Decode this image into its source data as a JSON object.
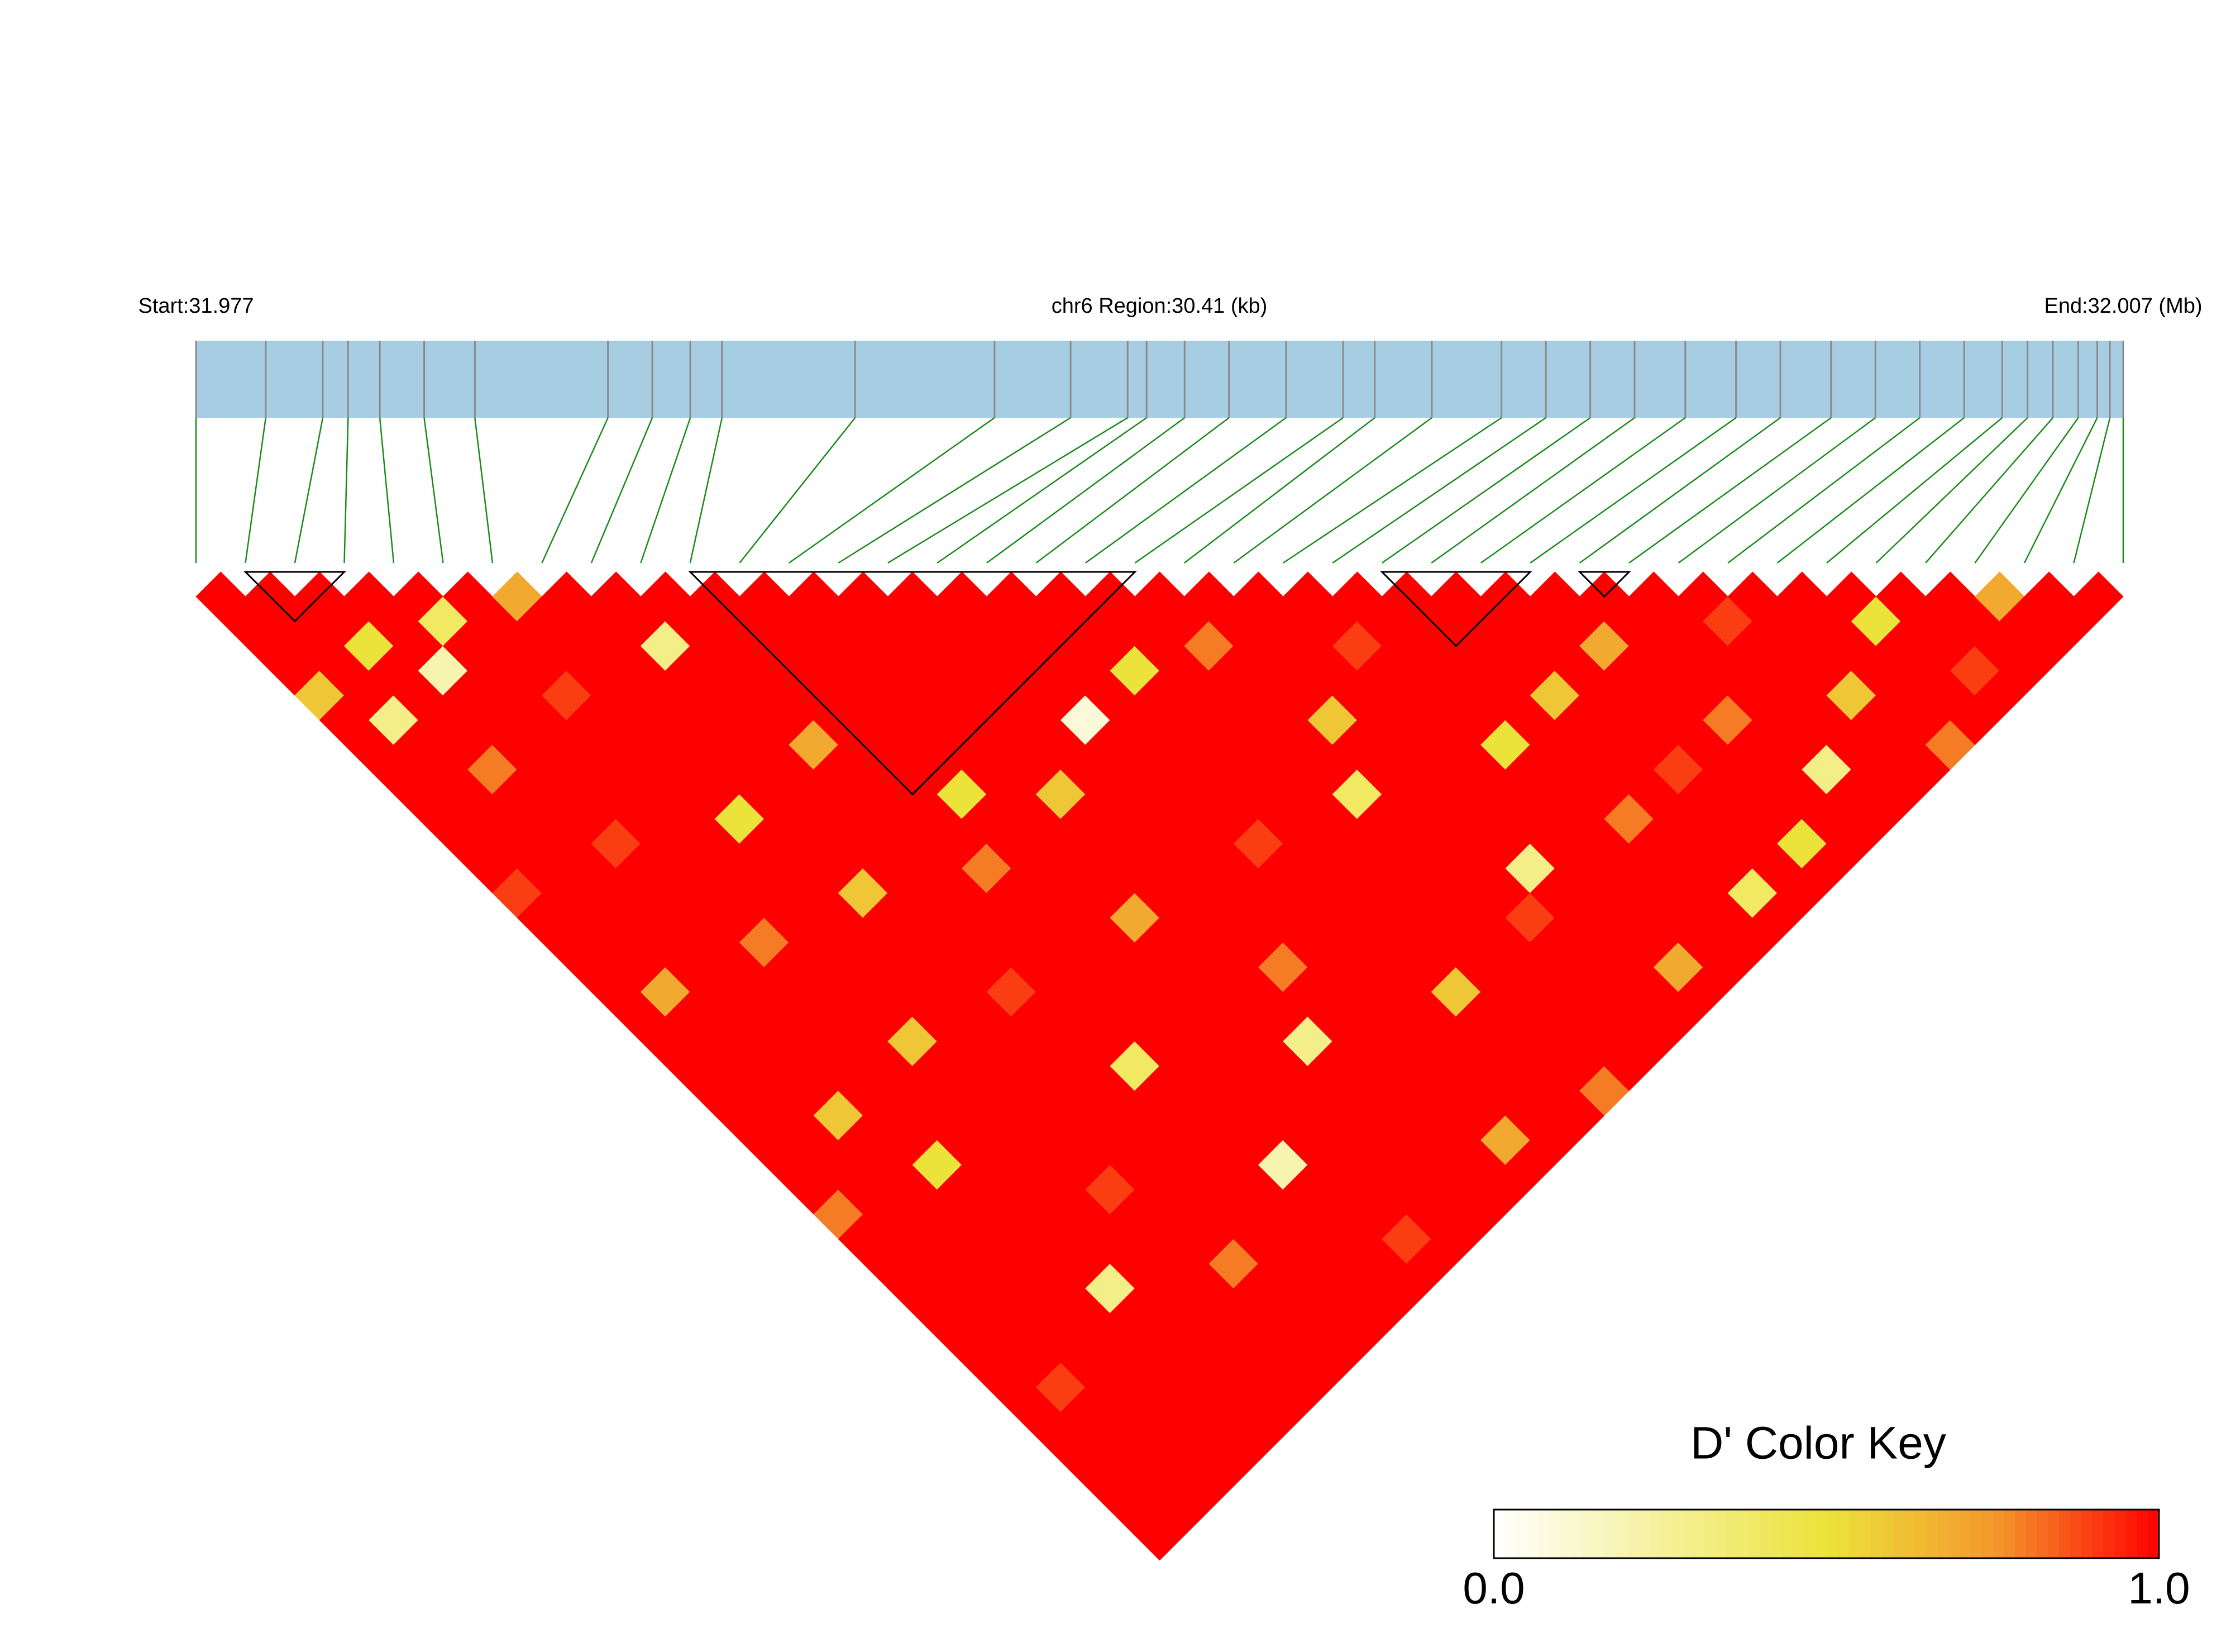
{
  "chart_data": {
    "type": "ld-heatmap",
    "start_label": "Start:31.977",
    "region_label": "chr6 Region:30.41 (kb)",
    "end_label": "End:32.007 (Mb)",
    "xlim": [
      0,
      30.41
    ],
    "positions": [
      0,
      1.1,
      2.0,
      2.4,
      2.9,
      3.6,
      4.4,
      6.5,
      7.2,
      7.8,
      8.3,
      10.4,
      12.6,
      13.8,
      14.7,
      15.0,
      15.6,
      16.3,
      17.2,
      18.1,
      18.6,
      19.5,
      20.6,
      21.3,
      22.0,
      22.7,
      23.5,
      24.3,
      25.0,
      25.8,
      26.5,
      27.2,
      27.9,
      28.5,
      28.9,
      29.3,
      29.7,
      30.0,
      30.2,
      30.41
    ],
    "dprime": [
      [
        1,
        1,
        1,
        1,
        0.6,
        1,
        1,
        1,
        1,
        1,
        1,
        1,
        0.9,
        1,
        1,
        1,
        1,
        1,
        1,
        1,
        1,
        1,
        1,
        1,
        1,
        0.8,
        1,
        1,
        1,
        1,
        1,
        1,
        1,
        1,
        1,
        1,
        1,
        1,
        1
      ],
      [
        1,
        1,
        1,
        1,
        1,
        0.3,
        1,
        1,
        1,
        1,
        1,
        1,
        1,
        1,
        1,
        1,
        0.7,
        1,
        1,
        1,
        1,
        1,
        1,
        1,
        1,
        1,
        1,
        1,
        1,
        1,
        1,
        1,
        0.9,
        1,
        1,
        1,
        1,
        1
      ],
      [
        1,
        1,
        0.5,
        1,
        1,
        1,
        1,
        0.8,
        1,
        1,
        1,
        1,
        1,
        1,
        1,
        1,
        1,
        1,
        1,
        1,
        1,
        0.6,
        1,
        1,
        1,
        1,
        1,
        1,
        1,
        1,
        1,
        1,
        1,
        1,
        1,
        1,
        1
      ],
      [
        1,
        1,
        1,
        0.2,
        1,
        1,
        1,
        1,
        1,
        1,
        0.9,
        1,
        1,
        1,
        1,
        1,
        1,
        1,
        1,
        1,
        1,
        1,
        1,
        0.5,
        1,
        1,
        1,
        1,
        1,
        1,
        1,
        1,
        1,
        1,
        1,
        1
      ],
      [
        1,
        0.4,
        1,
        1,
        1,
        1,
        1,
        1,
        1,
        1,
        1,
        1,
        1,
        1,
        0.8,
        1,
        1,
        1,
        1,
        1,
        1,
        1,
        1,
        1,
        1,
        1,
        1,
        1,
        0.3,
        1,
        1,
        1,
        1,
        1,
        1
      ],
      [
        1,
        1,
        1,
        1,
        0.9,
        1,
        1,
        1,
        1,
        1,
        1,
        1,
        1,
        1,
        1,
        1,
        1,
        1,
        0.6,
        1,
        1,
        1,
        1,
        1,
        1,
        1,
        1,
        1,
        1,
        1,
        1,
        1,
        1,
        1
      ],
      [
        0.7,
        1,
        1,
        1,
        1,
        1,
        1,
        1,
        1,
        0.5,
        1,
        1,
        1,
        1,
        1,
        1,
        1,
        1,
        1,
        1,
        1,
        1,
        1,
        1,
        0.9,
        1,
        1,
        1,
        1,
        1,
        1,
        1,
        1
      ],
      [
        1,
        1,
        1,
        1,
        1,
        1,
        1,
        1,
        1,
        1,
        1,
        1,
        0.6,
        1,
        1,
        1,
        1,
        1,
        1,
        1,
        1,
        1,
        1,
        1,
        1,
        1,
        1,
        0.8,
        1,
        1,
        1,
        1
      ],
      [
        1,
        1,
        0.3,
        1,
        1,
        1,
        1,
        1,
        1,
        1,
        1,
        1,
        1,
        1,
        1,
        1,
        0.9,
        1,
        1,
        1,
        1,
        1,
        1,
        1,
        1,
        1,
        1,
        1,
        1,
        1,
        1
      ],
      [
        1,
        1,
        1,
        1,
        1,
        1,
        0.7,
        1,
        1,
        1,
        1,
        1,
        1,
        1,
        1,
        1,
        1,
        1,
        1,
        0.4,
        1,
        1,
        1,
        1,
        1,
        1,
        1,
        1,
        1,
        1
      ],
      [
        1,
        1,
        1,
        1,
        1,
        1,
        1,
        1,
        1,
        1,
        1,
        0.8,
        1,
        1,
        1,
        1,
        1,
        1,
        1,
        1,
        1,
        1,
        1,
        0.2,
        1,
        1,
        1,
        1,
        1
      ],
      [
        1,
        1,
        1,
        1,
        1,
        1,
        1,
        1,
        0.5,
        1,
        1,
        1,
        1,
        1,
        1,
        1,
        1,
        1,
        1,
        1,
        1,
        1,
        1,
        1,
        1,
        1,
        0.9,
        1
      ],
      [
        1,
        1,
        1,
        1,
        1,
        1,
        1,
        1,
        1,
        1,
        1,
        1,
        1,
        0.7,
        1,
        1,
        1,
        1,
        1,
        1,
        1,
        1,
        1,
        1,
        1,
        1,
        1
      ],
      [
        1,
        1,
        1,
        1,
        1,
        1,
        1,
        1,
        0.6,
        1,
        1,
        1,
        1,
        1,
        1,
        1,
        1,
        1,
        0.3,
        1,
        1,
        1,
        1,
        1,
        1,
        1
      ],
      [
        1,
        1,
        1,
        1,
        1,
        1,
        1,
        1,
        1,
        1,
        1,
        1,
        1,
        1,
        1,
        0.8,
        1,
        1,
        1,
        1,
        1,
        1,
        1,
        1,
        1
      ],
      [
        1,
        1,
        1,
        1,
        1,
        0.1,
        1,
        1,
        1,
        1,
        1,
        1,
        1,
        1,
        1,
        1,
        1,
        1,
        1,
        1,
        1,
        1,
        0.7,
        1
      ],
      [
        1,
        1,
        1,
        1,
        1,
        1,
        1,
        1,
        1,
        1,
        0.9,
        1,
        1,
        1,
        1,
        1,
        1,
        1,
        1,
        1,
        1,
        1,
        1
      ],
      [
        1,
        1,
        1,
        0.5,
        1,
        1,
        1,
        1,
        1,
        1,
        1,
        1,
        1,
        1,
        1,
        1,
        0.6,
        1,
        1,
        1,
        1,
        1
      ],
      [
        1,
        1,
        1,
        1,
        1,
        1,
        1,
        1,
        1,
        1,
        1,
        1,
        1,
        1,
        1,
        1,
        1,
        1,
        1,
        1,
        0.8
      ],
      [
        1,
        1,
        0.8,
        1,
        1,
        1,
        1,
        1,
        0.4,
        1,
        1,
        1,
        1,
        1,
        1,
        1,
        1,
        1,
        1,
        1
      ],
      [
        1,
        1,
        1,
        1,
        1,
        0.6,
        1,
        1,
        1,
        1,
        1,
        1,
        1,
        0.9,
        1,
        1,
        1,
        1,
        1
      ],
      [
        1,
        1,
        1,
        1,
        1,
        1,
        1,
        1,
        1,
        1,
        1,
        0.3,
        1,
        1,
        1,
        1,
        1,
        1
      ],
      [
        1,
        1,
        0.9,
        1,
        1,
        1,
        1,
        1,
        1,
        1,
        1,
        1,
        1,
        1,
        1,
        0.7,
        1
      ],
      [
        1,
        1,
        1,
        1,
        1,
        1,
        0.5,
        1,
        1,
        1,
        1,
        1,
        1,
        1,
        1,
        1
      ],
      [
        1,
        1,
        1,
        1,
        1,
        1,
        1,
        1,
        1,
        0.8,
        1,
        1,
        1,
        1,
        1
      ],
      [
        1,
        1,
        1,
        1,
        0.6,
        1,
        1,
        1,
        1,
        1,
        1,
        1,
        0.4,
        1
      ],
      [
        1,
        1,
        1,
        1,
        1,
        1,
        1,
        0.9,
        1,
        1,
        1,
        1,
        1
      ],
      [
        1,
        1,
        0.7,
        1,
        1,
        1,
        1,
        1,
        1,
        1,
        0.5,
        1
      ],
      [
        1,
        1,
        1,
        1,
        1,
        0.8,
        1,
        1,
        1,
        1,
        1
      ],
      [
        1,
        1,
        1,
        1,
        1,
        1,
        1,
        0.3,
        1,
        1
      ],
      [
        1,
        0.9,
        1,
        1,
        1,
        1,
        1,
        1,
        1
      ],
      [
        1,
        1,
        1,
        1,
        0.6,
        1,
        1,
        1
      ],
      [
        1,
        1,
        1,
        1,
        1,
        1,
        0.8
      ],
      [
        1,
        0.5,
        1,
        1,
        1,
        1
      ],
      [
        1,
        1,
        1,
        0.9,
        1
      ],
      [
        1,
        1,
        1,
        1
      ],
      [
        0.7,
        1,
        1
      ],
      [
        1,
        1
      ],
      [
        1
      ]
    ],
    "blocks": [
      [
        1,
        3
      ],
      [
        10,
        19
      ],
      [
        24,
        27
      ],
      [
        28,
        29
      ]
    ],
    "bar_color": "#a6cde2",
    "marker_color": "#8a8a8a",
    "connector_color": "#1a8a1a",
    "block_color": "#000000",
    "color_stops": [
      {
        "value": 0,
        "color": "#ffffff"
      },
      {
        "value": 0.5,
        "color": "#ece33a"
      },
      {
        "value": 0.75,
        "color": "#f39a2e"
      },
      {
        "value": 1,
        "color": "#ff0000"
      }
    ],
    "legend": {
      "title": "D' Color Key",
      "ticks": [
        {
          "value": 0,
          "label": "0.0"
        },
        {
          "value": 1,
          "label": "1.0"
        }
      ]
    }
  }
}
